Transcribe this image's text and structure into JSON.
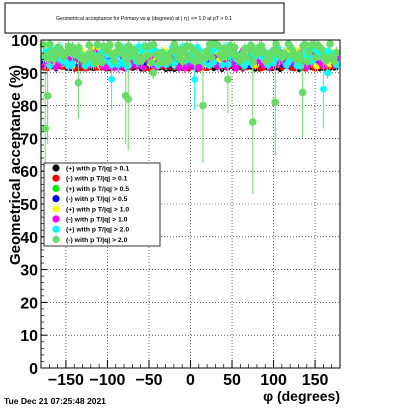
{
  "title": "Geometrical acceptance for Primary vs φ (degrees) at |  η | <= 1.0 at pT > 0.1",
  "footer": "Tue Dec 21 07:25:48 2021",
  "chart_data": {
    "type": "scatter",
    "xlabel": "φ (degrees)",
    "ylabel": "Geometrical acceptance (%)",
    "xlim": [
      -180,
      180
    ],
    "ylim": [
      0,
      100
    ],
    "x_ticks": [
      -150,
      -100,
      -50,
      0,
      50,
      100,
      150
    ],
    "y_ticks": [
      0,
      10,
      20,
      30,
      40,
      50,
      60,
      70,
      80,
      90,
      100
    ],
    "grid": true,
    "legend_position": "middle-left",
    "colors": {
      "black": "#000000",
      "red": "#ff0000",
      "green": "#00ee00",
      "blue": "#0000ff",
      "yellow": "#ffff00",
      "magenta": "#ff00ff",
      "cyan": "#00ffff",
      "lightgreen": "#66dd66"
    },
    "series": [
      {
        "name": "(+) with p T/|q| > 0.1",
        "color": "#000000",
        "base": 91.5,
        "noise": 0.6,
        "radius": 2.2
      },
      {
        "name": "(-) with p T/|q| > 0.1",
        "color": "#ff0000",
        "base": 91.8,
        "noise": 0.8,
        "radius": 2.4
      },
      {
        "name": "(+) with p T/|q| > 0.5",
        "color": "#00ee00",
        "base": 94.5,
        "noise": 1.5,
        "radius": 2.6
      },
      {
        "name": "(-) with p T/|q| > 0.5",
        "color": "#0000ff",
        "base": 93.5,
        "noise": 1.5,
        "radius": 2.6
      },
      {
        "name": "(+) with p T/|q| > 1.0",
        "color": "#ffff00",
        "base": 94.5,
        "noise": 2.5,
        "radius": 3.0
      },
      {
        "name": "(-) with p T/|q| > 1.0",
        "color": "#ff00ff",
        "base": 94.0,
        "noise": 2.5,
        "radius": 3.0
      },
      {
        "name": "(+) with p T/|q| > 2.0",
        "color": "#00ffff",
        "base": 95.0,
        "noise": 3.0,
        "radius": 3.4,
        "outliers": [
          [
            -168,
            97
          ],
          [
            -95,
            88
          ],
          [
            5,
            88
          ],
          [
            100,
            93
          ],
          [
            160,
            85
          ],
          [
            165,
            90
          ]
        ]
      },
      {
        "name": "(-) with p T/|q| > 2.0",
        "color": "#66dd66",
        "base": 96.0,
        "noise": 3.0,
        "radius": 3.8,
        "outliers": [
          [
            -175,
            73
          ],
          [
            -172,
            83
          ],
          [
            -135,
            87
          ],
          [
            -78,
            83
          ],
          [
            -75,
            82
          ],
          [
            -45,
            90
          ],
          [
            15,
            80
          ],
          [
            45,
            88
          ],
          [
            75,
            75
          ],
          [
            102,
            81
          ],
          [
            135,
            84
          ]
        ]
      }
    ]
  }
}
